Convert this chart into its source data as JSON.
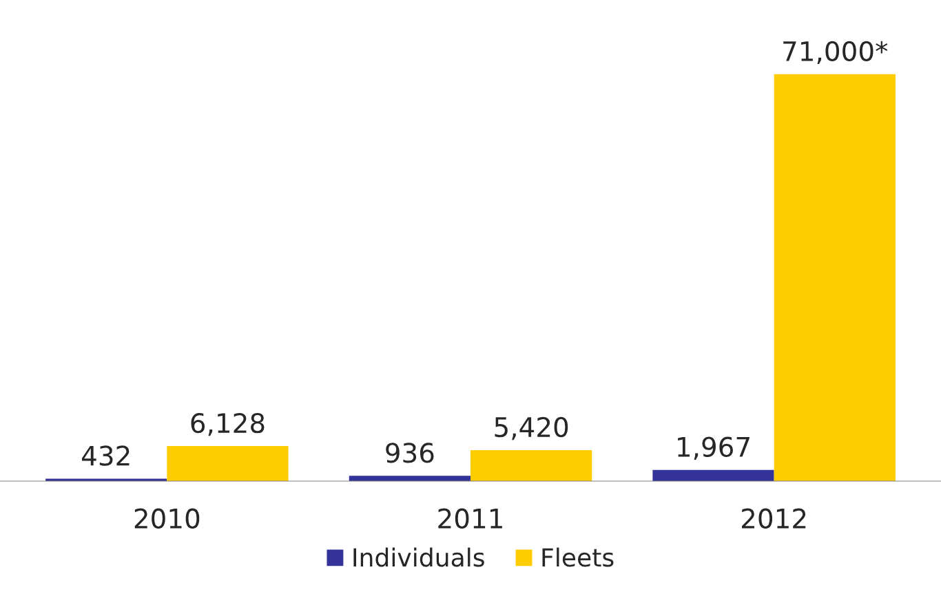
{
  "chart_data": {
    "type": "bar",
    "categories": [
      "2010",
      "2011",
      "2012"
    ],
    "series": [
      {
        "name": "Individuals",
        "color": "#333399",
        "values": [
          432,
          936,
          1967
        ],
        "value_labels": [
          "432",
          "936",
          "1,967"
        ]
      },
      {
        "name": "Fleets",
        "color": "#ffcc00",
        "values": [
          6128,
          5420,
          71000
        ],
        "value_labels": [
          "6,128",
          "5,420",
          "71,000*"
        ]
      }
    ],
    "tick_labels": "x",
    "legend": "bottom",
    "grid": false
  }
}
